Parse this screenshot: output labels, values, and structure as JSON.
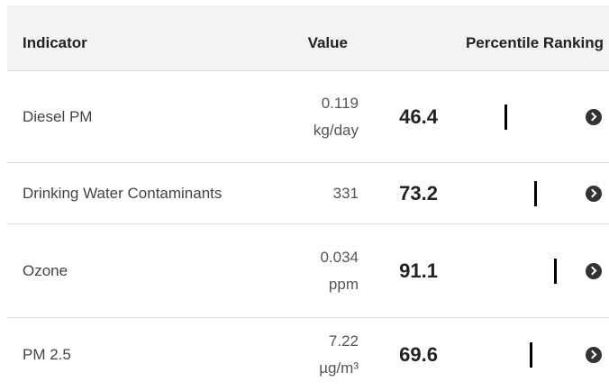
{
  "header": {
    "indicator": "Indicator",
    "value": "Value",
    "percentile": "Percentile Ranking"
  },
  "rows": [
    {
      "indicator": "Diesel PM",
      "value": "0.119",
      "unit": "kg/day",
      "percentile": 46.4
    },
    {
      "indicator": "Drinking Water Contaminants",
      "value": "331",
      "percentile": 73.2
    },
    {
      "indicator": "Ozone",
      "value": "0.034",
      "unit": "ppm",
      "percentile": 91.1
    },
    {
      "indicator": "PM 2.5",
      "value": "7.22",
      "unit": "µg/m³",
      "percentile": 69.6
    }
  ]
}
